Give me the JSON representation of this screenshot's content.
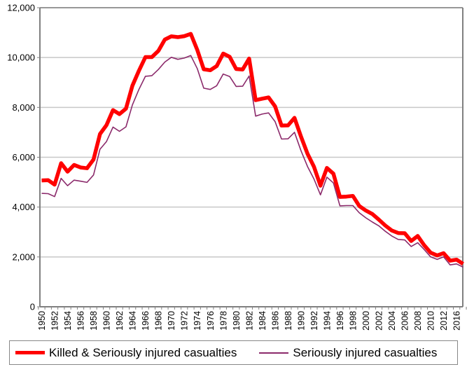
{
  "chart_data": {
    "type": "line",
    "title": "",
    "xlabel": "",
    "ylabel": "",
    "ylim": [
      0,
      12000
    ],
    "y_ticks": [
      "0",
      "2,000",
      "4,000",
      "6,000",
      "8,000",
      "10,000",
      "12,000"
    ],
    "x_tick_labels": [
      "1950",
      "1952",
      "1954",
      "1956",
      "1958",
      "1960",
      "1962",
      "1964",
      "1966",
      "1968",
      "1970",
      "1972",
      "1974",
      "1976",
      "1978",
      "1980",
      "1982",
      "1984",
      "1986",
      "1988",
      "1990",
      "1992",
      "1994",
      "1996",
      "1998",
      "2000",
      "2002",
      "2004",
      "2006",
      "2008",
      "2010",
      "2012",
      "2016"
    ],
    "grid": "horizontal",
    "legend_position": "bottom",
    "series": [
      {
        "name": "Killed & Seriously injured casualties",
        "color": "#ff0000",
        "values": [
          5070,
          5080,
          4900,
          5760,
          5420,
          5690,
          5590,
          5560,
          5910,
          6930,
          7290,
          7890,
          7730,
          7950,
          8870,
          9470,
          10020,
          10020,
          10270,
          10720,
          10850,
          10820,
          10860,
          10950,
          10310,
          9530,
          9490,
          9660,
          10160,
          10030,
          9540,
          9520,
          9960,
          8290,
          8350,
          8400,
          8040,
          7270,
          7280,
          7580,
          6830,
          6140,
          5620,
          4860,
          5570,
          5340,
          4410,
          4420,
          4450,
          4040,
          3860,
          3720,
          3500,
          3260,
          3060,
          2960,
          2950,
          2640,
          2840,
          2470,
          2170,
          2060,
          2150,
          1850,
          1890,
          1720
        ]
      },
      {
        "name": "Seriously injured casualties",
        "color": "#8b2a6b",
        "values": [
          4550,
          4540,
          4420,
          5150,
          4860,
          5080,
          5040,
          4990,
          5290,
          6320,
          6630,
          7210,
          7040,
          7220,
          8100,
          8720,
          9250,
          9270,
          9520,
          9820,
          10010,
          9930,
          9980,
          10080,
          9560,
          8770,
          8720,
          8870,
          9340,
          9240,
          8840,
          8850,
          9260,
          7650,
          7730,
          7780,
          7430,
          6730,
          6740,
          7000,
          6260,
          5630,
          5130,
          4490,
          5200,
          4970,
          4050,
          4060,
          4060,
          3770,
          3570,
          3400,
          3250,
          3030,
          2840,
          2700,
          2680,
          2420,
          2570,
          2300,
          2000,
          1900,
          2000,
          1680,
          1720,
          1590
        ]
      }
    ]
  }
}
